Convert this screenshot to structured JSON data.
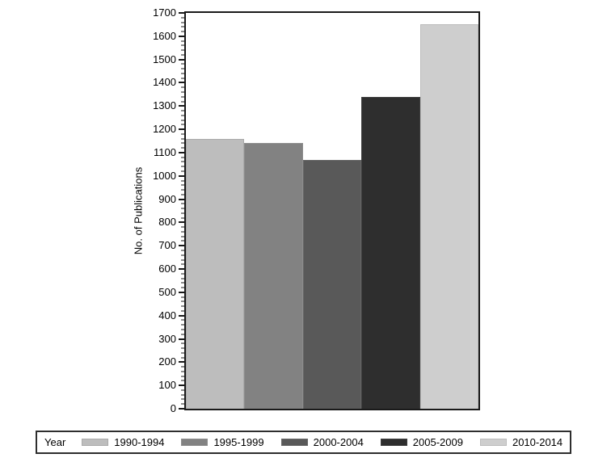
{
  "chart_data": {
    "type": "bar",
    "categories": [
      "1990-1994",
      "1995-1999",
      "2000-2004",
      "2005-2009",
      "2010-2014"
    ],
    "values": [
      1160,
      1140,
      1070,
      1340,
      1650
    ],
    "title": "",
    "xlabel": "",
    "ylabel": "No. of Publications",
    "ylim": [
      0,
      1700
    ],
    "ytick_step": 100,
    "y_minor_step": 20,
    "grid": false,
    "legend_position": "bottom",
    "legend_title": "Year",
    "bar_colors": [
      "#bdbdbd",
      "#828282",
      "#595959",
      "#2e2e2e",
      "#cecece"
    ],
    "bar_border_colors": [
      "#aaaaaa",
      "#8d8d8d",
      "#676767",
      "#3e3e3e",
      "#bcbcbc"
    ],
    "frame_color": "#1a1a1a",
    "background_color": "#ffffff"
  }
}
